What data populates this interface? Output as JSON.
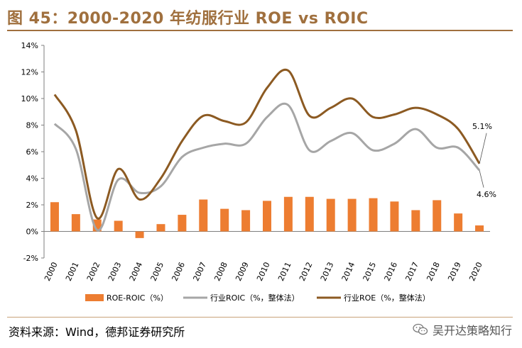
{
  "title": "图 45：2000-2020 年纺服行业 ROE vs ROIC",
  "source": "资料来源：Wind，德邦证券研究所",
  "watermark": "吴开达策略知行",
  "colors": {
    "bar": "#ed7d31",
    "roic_line": "#a6a6a6",
    "roe_line": "#8c5a22",
    "title": "#a0703e"
  },
  "chart_data": {
    "type": "bar+line",
    "categories": [
      "2000",
      "2001",
      "2002",
      "2003",
      "2004",
      "2005",
      "2006",
      "2007",
      "2008",
      "2009",
      "2010",
      "2011",
      "2012",
      "2013",
      "2014",
      "2015",
      "2016",
      "2017",
      "2018",
      "2019",
      "2020"
    ],
    "ylim": [
      -2,
      14
    ],
    "yticks": [
      -2,
      0,
      2,
      4,
      6,
      8,
      10,
      12,
      14
    ],
    "ytick_labels": [
      "-2%",
      "0%",
      "2%",
      "4%",
      "6%",
      "8%",
      "10%",
      "12%",
      "14%"
    ],
    "series": [
      {
        "name": "ROE-ROIC（%）",
        "type": "bar",
        "values": [
          2.2,
          1.3,
          0.9,
          0.8,
          -0.5,
          0.55,
          1.25,
          2.4,
          1.7,
          1.6,
          2.3,
          2.6,
          2.6,
          2.45,
          2.45,
          2.5,
          2.25,
          1.6,
          2.35,
          1.35,
          0.45
        ]
      },
      {
        "name": "行业ROIC（%，整体法）",
        "type": "line",
        "values": [
          8.1,
          6.2,
          0.1,
          3.9,
          2.9,
          3.4,
          5.6,
          6.3,
          6.6,
          6.6,
          8.6,
          9.5,
          6.1,
          6.8,
          7.4,
          6.1,
          6.6,
          7.7,
          6.3,
          6.3,
          4.6
        ]
      },
      {
        "name": "行业ROE（%，整体法）",
        "type": "line",
        "values": [
          10.3,
          7.6,
          1.0,
          4.7,
          2.4,
          4.0,
          6.8,
          8.7,
          8.3,
          8.2,
          10.8,
          12.1,
          8.7,
          9.3,
          10.0,
          8.6,
          8.8,
          9.3,
          8.8,
          7.7,
          5.1
        ]
      }
    ],
    "annotations": [
      {
        "text": "5.1%",
        "series": "行业ROE（%，整体法）",
        "category": "2020"
      },
      {
        "text": "4.6%",
        "series": "行业ROIC（%，整体法）",
        "category": "2020"
      }
    ]
  }
}
